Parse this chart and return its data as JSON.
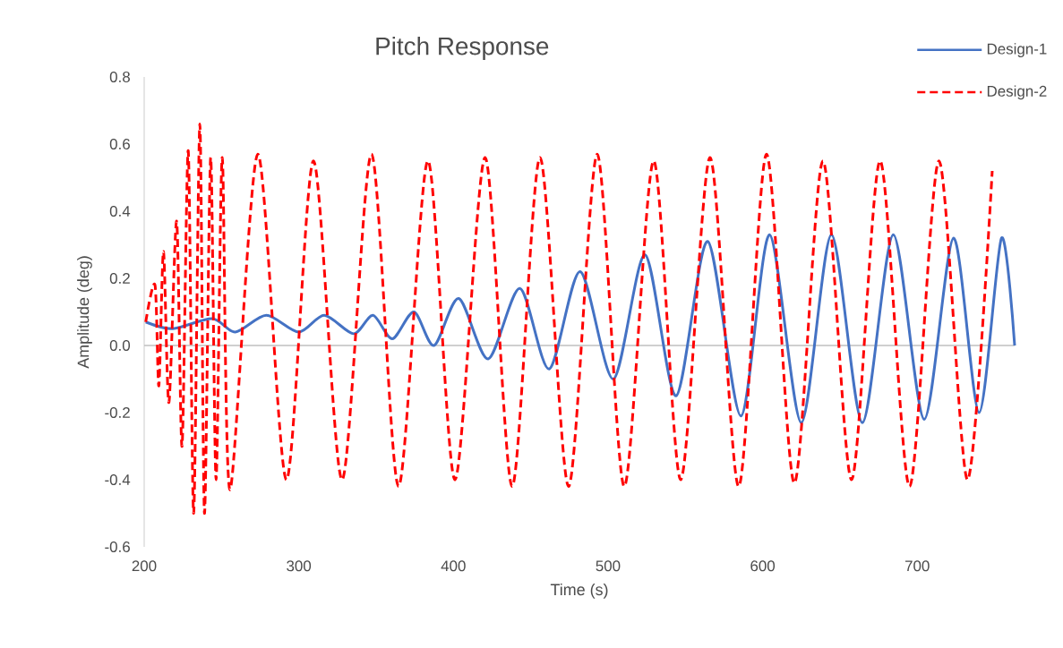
{
  "chart_data": {
    "type": "line",
    "title": "Pitch Response",
    "xlabel": "Time (s)",
    "ylabel": "Amplitude (deg)",
    "xlim": [
      200,
      763
    ],
    "ylim": [
      -0.6,
      0.8
    ],
    "xticks": [
      200,
      300,
      400,
      500,
      600,
      700
    ],
    "yticks": [
      -0.6,
      -0.4,
      -0.2,
      {
        "value": 0,
        "label": "0.0"
      },
      0.2,
      0.4,
      0.6,
      0.8
    ],
    "legend": "top right",
    "grid": false,
    "ref_lines": [
      {
        "axis": "y",
        "value": 0,
        "color": "#bfbfbf"
      }
    ],
    "series": [
      {
        "name": "Design-1",
        "color": "#4472c4",
        "line_style": "solid",
        "x": [
          201,
          218.5,
          244,
          259,
          279,
          300,
          316.5,
          335.5,
          348,
          360.5,
          374.5,
          387.5,
          403.5,
          422.5,
          443,
          462,
          482,
          503.5,
          524,
          544,
          564.5,
          586,
          604.5,
          625,
          644.5,
          664.5,
          684.5,
          704.5,
          723.5,
          740,
          754.5,
          763
        ],
        "values": [
          0.07,
          0.05,
          0.08,
          0.04,
          0.09,
          0.04,
          0.09,
          0.035,
          0.09,
          0.02,
          0.1,
          0,
          0.14,
          -0.04,
          0.17,
          -0.07,
          0.22,
          -0.1,
          0.27,
          -0.15,
          0.31,
          -0.21,
          0.33,
          -0.23,
          0.33,
          -0.23,
          0.33,
          -0.22,
          0.32,
          -0.2,
          0.32,
          0
        ]
      },
      {
        "name": "Design-2",
        "color": "#ff0000",
        "line_style": "dashed",
        "x": [
          201,
          207,
          209.5,
          212.5,
          216,
          221,
          224.5,
          228.5,
          232,
          236,
          239,
          243,
          246.5,
          250.5,
          255.5,
          273.5,
          292,
          309.5,
          328,
          347,
          364.5,
          383.5,
          401,
          420.5,
          438,
          456,
          474.5,
          493,
          510.5,
          529.5,
          547,
          566,
          584.5,
          602.5,
          620.5,
          639,
          657.5,
          676,
          695,
          714,
          732.5,
          748.5
        ],
        "values": [
          0.07,
          0.18,
          -0.12,
          0.28,
          -0.17,
          0.37,
          -0.3,
          0.58,
          -0.5,
          0.66,
          -0.5,
          0.56,
          -0.4,
          0.56,
          -0.43,
          0.57,
          -0.4,
          0.55,
          -0.4,
          0.57,
          -0.42,
          0.55,
          -0.4,
          0.56,
          -0.42,
          0.56,
          -0.42,
          0.57,
          -0.42,
          0.55,
          -0.4,
          0.56,
          -0.42,
          0.57,
          -0.41,
          0.55,
          -0.4,
          0.55,
          -0.42,
          0.55,
          -0.4,
          0.52
        ]
      }
    ]
  }
}
